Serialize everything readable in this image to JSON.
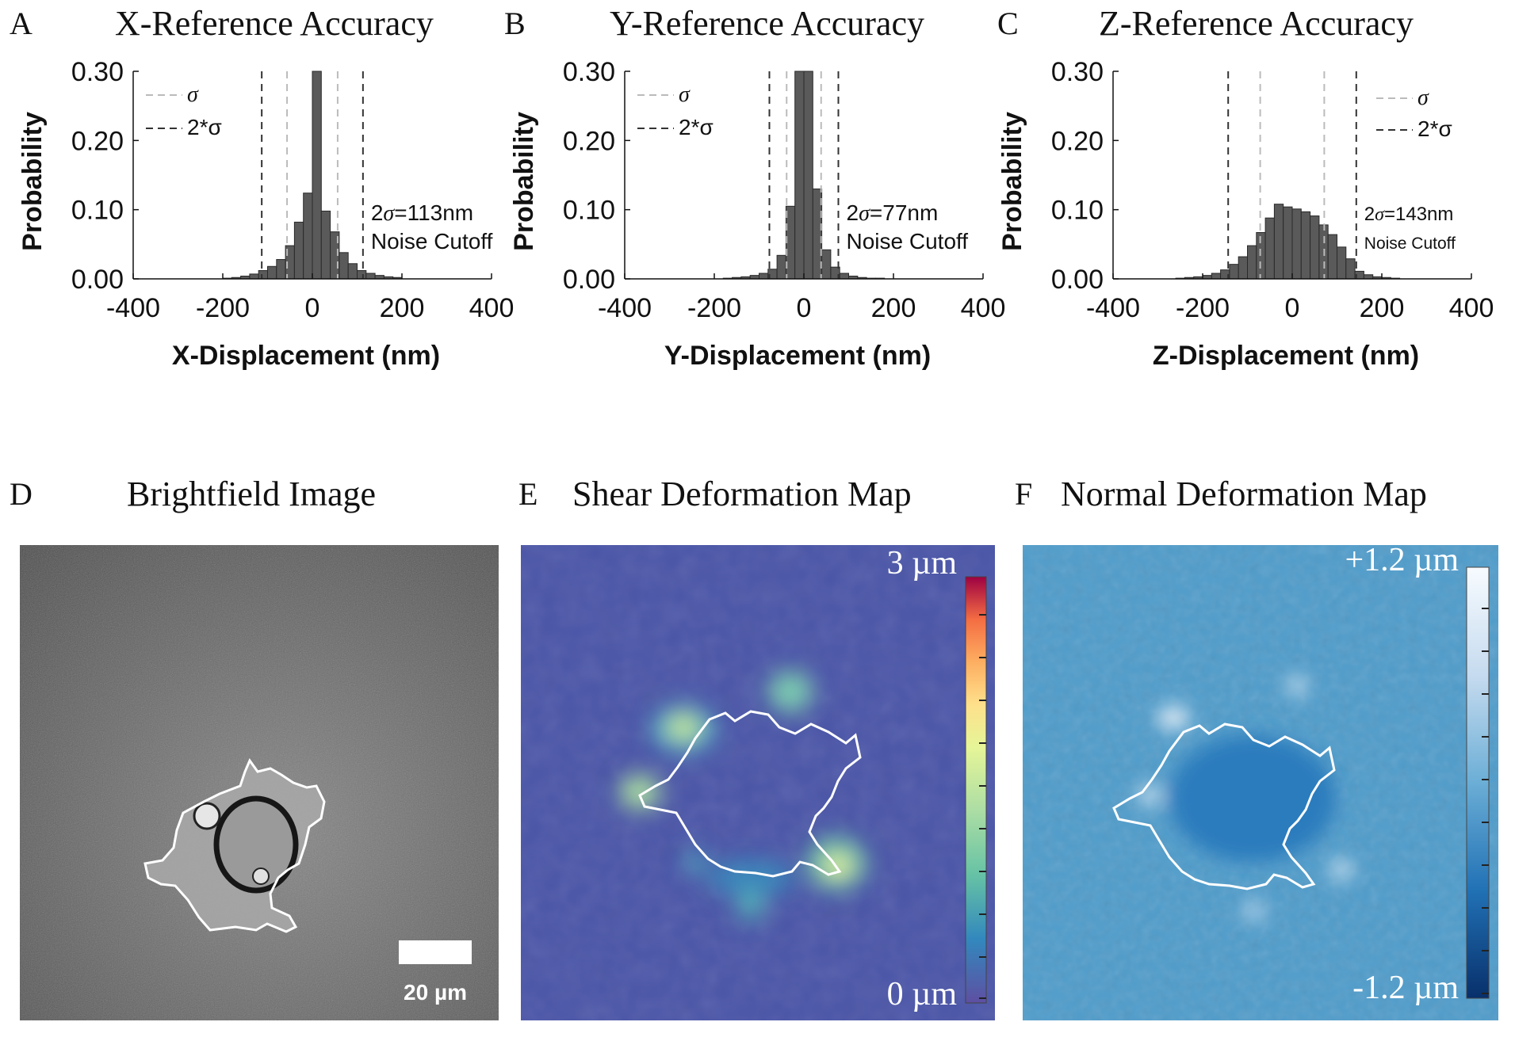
{
  "chart_data": [
    {
      "type": "bar",
      "panel": "A",
      "title": "X-Reference Accuracy",
      "xlabel": "X-Displacement (nm)",
      "ylabel": "Probability",
      "xlim": [
        -400,
        400
      ],
      "ylim": [
        0,
        0.3
      ],
      "xticks": [
        "-400",
        "-200",
        "0",
        "200",
        "400"
      ],
      "yticks": [
        "0.00",
        "0.10",
        "0.20",
        "0.30"
      ],
      "bin_width_nm": 20,
      "bin_centers": [
        -190,
        -170,
        -150,
        -130,
        -110,
        -90,
        -70,
        -50,
        -30,
        -10,
        10,
        30,
        50,
        70,
        90,
        110,
        130,
        150,
        170,
        190
      ],
      "values": [
        0.001,
        0.002,
        0.004,
        0.007,
        0.012,
        0.018,
        0.028,
        0.048,
        0.082,
        0.124,
        0.3,
        0.098,
        0.068,
        0.038,
        0.022,
        0.012,
        0.008,
        0.005,
        0.003,
        0.002
      ],
      "sigma_nm": 56.5,
      "two_sigma_nm": 113,
      "legend": {
        "sigma": "σ",
        "two_sigma": "2*σ",
        "position": "top-left"
      },
      "annotation": {
        "line1_prefix": "2",
        "line1_sigma": "σ",
        "line1_suffix": "=113nm",
        "line2": "Noise Cutoff"
      }
    },
    {
      "type": "bar",
      "panel": "B",
      "title": "Y-Reference Accuracy",
      "xlabel": "Y-Displacement (nm)",
      "ylabel": "Probability",
      "xlim": [
        -400,
        400
      ],
      "ylim": [
        0,
        0.3
      ],
      "xticks": [
        "-400",
        "-200",
        "0",
        "200",
        "400"
      ],
      "yticks": [
        "0.00",
        "0.10",
        "0.20",
        "0.30"
      ],
      "bin_width_nm": 20,
      "bin_centers": [
        -190,
        -170,
        -150,
        -130,
        -110,
        -90,
        -70,
        -50,
        -30,
        -10,
        10,
        30,
        50,
        70,
        90,
        110,
        130,
        150,
        170,
        190
      ],
      "values": [
        0.0,
        0.001,
        0.002,
        0.003,
        0.005,
        0.008,
        0.014,
        0.034,
        0.105,
        0.3,
        0.3,
        0.13,
        0.042,
        0.017,
        0.008,
        0.004,
        0.002,
        0.001,
        0.001,
        0.0
      ],
      "sigma_nm": 38.5,
      "two_sigma_nm": 77,
      "legend": {
        "sigma": "σ",
        "two_sigma": "2*σ",
        "position": "top-left"
      },
      "annotation": {
        "line1_prefix": "2",
        "line1_sigma": "σ",
        "line1_suffix": "=77nm",
        "line2": "Noise Cutoff"
      }
    },
    {
      "type": "bar",
      "panel": "C",
      "title": "Z-Reference Accuracy",
      "xlabel": "Z-Displacement (nm)",
      "ylabel": "Probability",
      "xlim": [
        -400,
        400
      ],
      "ylim": [
        0,
        0.3
      ],
      "xticks": [
        "-400",
        "-200",
        "0",
        "200",
        "400"
      ],
      "yticks": [
        "0.00",
        "0.10",
        "0.20",
        "0.30"
      ],
      "bin_width_nm": 20,
      "bin_centers": [
        -250,
        -230,
        -210,
        -190,
        -170,
        -150,
        -130,
        -110,
        -90,
        -70,
        -50,
        -30,
        -10,
        10,
        30,
        50,
        70,
        90,
        110,
        130,
        150,
        170,
        190,
        210,
        230,
        250
      ],
      "values": [
        0.001,
        0.002,
        0.003,
        0.005,
        0.008,
        0.013,
        0.021,
        0.032,
        0.048,
        0.067,
        0.088,
        0.108,
        0.104,
        0.101,
        0.097,
        0.091,
        0.078,
        0.064,
        0.046,
        0.029,
        0.011,
        0.006,
        0.003,
        0.002,
        0.001,
        0.0
      ],
      "sigma_nm": 71.5,
      "two_sigma_nm": 143,
      "legend": {
        "sigma": "σ",
        "two_sigma": "2*σ",
        "position": "top-right"
      },
      "annotation": {
        "line1_prefix": "2",
        "line1_sigma": "σ",
        "line1_suffix": "=143nm",
        "line2": "Noise Cutoff"
      }
    }
  ],
  "images": {
    "D": {
      "letter": "D",
      "title": "Brightfield Image",
      "scalebar_label": "20 µm"
    },
    "E": {
      "letter": "E",
      "title": "Shear Deformation Map",
      "colorbar_max": "3 µm",
      "colorbar_min": "0 µm"
    },
    "F": {
      "letter": "F",
      "title": "Normal Deformation Map",
      "colorbar_max": "+1.2 µm",
      "colorbar_min": "-1.2 µm"
    }
  },
  "colors": {
    "bar_fill": "#5a5a5a",
    "bar_edge": "#2a2a2a",
    "sigma_line": "#bbbbbb",
    "two_sigma_line": "#333333",
    "shear_bg": "#4a55a8",
    "normal_bg": "#4f9ccb"
  }
}
